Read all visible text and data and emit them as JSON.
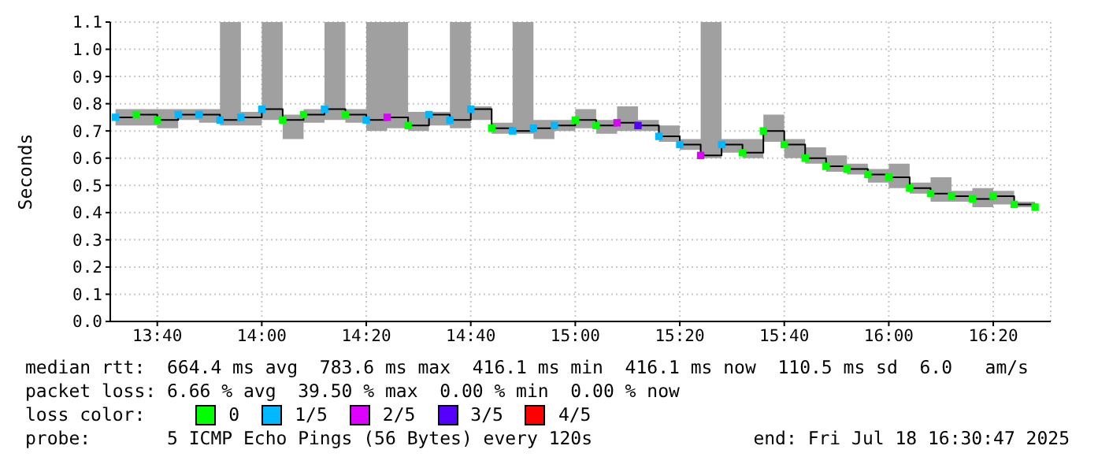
{
  "chart_data": {
    "type": "step",
    "ylabel": "Seconds",
    "legend_title": "loss color:",
    "legend": "bottom",
    "grid": true,
    "marker": "square",
    "x": [
      "2025-07-18T13:32",
      "2025-07-18T13:36",
      "2025-07-18T13:40",
      "2025-07-18T13:44",
      "2025-07-18T13:48",
      "2025-07-18T13:52",
      "2025-07-18T13:56",
      "2025-07-18T14:00",
      "2025-07-18T14:04",
      "2025-07-18T14:08",
      "2025-07-18T14:12",
      "2025-07-18T14:16",
      "2025-07-18T14:20",
      "2025-07-18T14:24",
      "2025-07-18T14:28",
      "2025-07-18T14:32",
      "2025-07-18T14:36",
      "2025-07-18T14:40",
      "2025-07-18T14:44",
      "2025-07-18T14:48",
      "2025-07-18T14:52",
      "2025-07-18T14:56",
      "2025-07-18T15:00",
      "2025-07-18T15:04",
      "2025-07-18T15:08",
      "2025-07-18T15:12",
      "2025-07-18T15:16",
      "2025-07-18T15:20",
      "2025-07-18T15:24",
      "2025-07-18T15:28",
      "2025-07-18T15:32",
      "2025-07-18T15:36",
      "2025-07-18T15:40",
      "2025-07-18T15:44",
      "2025-07-18T15:48",
      "2025-07-18T15:52",
      "2025-07-18T15:56",
      "2025-07-18T16:00",
      "2025-07-18T16:04",
      "2025-07-18T16:08",
      "2025-07-18T16:12",
      "2025-07-18T16:16",
      "2025-07-18T16:20",
      "2025-07-18T16:24",
      "2025-07-18T16:28"
    ],
    "series": [
      {
        "marker": "none",
        "color": "#000000",
        "values": [
          0.75,
          0.76,
          0.74,
          0.76,
          0.76,
          0.74,
          0.75,
          0.78,
          0.74,
          0.76,
          0.78,
          0.76,
          0.74,
          0.75,
          0.72,
          0.76,
          0.74,
          0.78,
          0.71,
          0.7,
          0.71,
          0.72,
          0.74,
          0.72,
          0.73,
          0.72,
          0.68,
          0.65,
          0.61,
          0.65,
          0.62,
          0.7,
          0.65,
          0.6,
          0.57,
          0.56,
          0.54,
          0.53,
          0.49,
          0.47,
          0.46,
          0.45,
          0.46,
          0.43,
          0.42
        ],
        "lower": [
          0.72,
          0.72,
          0.71,
          0.74,
          0.73,
          0.72,
          0.72,
          0.74,
          0.67,
          0.73,
          0.74,
          0.73,
          0.7,
          0.71,
          0.7,
          0.72,
          0.71,
          0.74,
          0.69,
          0.69,
          0.67,
          0.7,
          0.71,
          0.69,
          0.7,
          0.7,
          0.66,
          0.63,
          0.6,
          0.62,
          0.6,
          0.66,
          0.6,
          0.58,
          0.55,
          0.54,
          0.51,
          0.49,
          0.47,
          0.44,
          0.44,
          0.42,
          0.43,
          0.42,
          0.4
        ],
        "upper": [
          0.78,
          0.78,
          0.78,
          0.78,
          0.78,
          1.1,
          0.77,
          1.1,
          0.76,
          0.78,
          1.1,
          0.78,
          1.1,
          1.1,
          0.77,
          0.77,
          1.1,
          0.79,
          0.73,
          1.1,
          0.74,
          0.74,
          0.78,
          0.74,
          0.79,
          0.74,
          0.72,
          0.67,
          1.1,
          0.67,
          0.67,
          0.76,
          0.67,
          0.64,
          0.61,
          0.58,
          0.56,
          0.58,
          0.51,
          0.53,
          0.48,
          0.49,
          0.48,
          0.44,
          0.43
        ]
      },
      {
        "type": "scatter",
        "name": "0",
        "color": "#00ff00",
        "values": [
          null,
          0.76,
          0.74,
          null,
          null,
          null,
          null,
          null,
          0.74,
          0.76,
          null,
          0.76,
          null,
          null,
          0.72,
          null,
          null,
          null,
          0.71,
          null,
          null,
          null,
          0.74,
          0.72,
          null,
          null,
          null,
          null,
          null,
          null,
          0.62,
          0.7,
          0.65,
          0.6,
          0.57,
          0.56,
          0.54,
          0.53,
          0.49,
          0.47,
          0.46,
          0.45,
          0.46,
          0.43,
          0.42
        ]
      },
      {
        "type": "scatter",
        "name": "1/5",
        "color": "#00b8ff",
        "values": [
          0.75,
          null,
          null,
          0.76,
          0.76,
          0.74,
          0.75,
          0.78,
          null,
          null,
          0.78,
          null,
          0.74,
          null,
          null,
          0.76,
          0.74,
          0.78,
          null,
          0.7,
          0.71,
          0.72,
          null,
          null,
          null,
          null,
          0.68,
          0.65,
          null,
          0.65,
          null,
          null,
          null,
          null,
          null,
          null,
          null,
          null,
          null,
          null,
          null,
          null,
          null,
          null,
          null
        ]
      },
      {
        "type": "scatter",
        "name": "2/5",
        "color": "#dd00ff",
        "values": [
          null,
          null,
          null,
          null,
          null,
          null,
          null,
          null,
          null,
          null,
          null,
          null,
          null,
          0.75,
          null,
          null,
          null,
          null,
          null,
          null,
          null,
          null,
          null,
          null,
          0.73,
          null,
          null,
          null,
          0.61,
          null,
          null,
          null,
          null,
          null,
          null,
          null,
          null,
          null,
          null,
          null,
          null,
          null,
          null,
          null,
          null
        ]
      },
      {
        "type": "scatter",
        "name": "3/5",
        "color": "#5500ff",
        "values": [
          null,
          null,
          null,
          null,
          null,
          null,
          null,
          null,
          null,
          null,
          null,
          null,
          null,
          null,
          null,
          null,
          null,
          null,
          null,
          null,
          null,
          null,
          null,
          null,
          null,
          0.72,
          null,
          null,
          null,
          null,
          null,
          null,
          null,
          null,
          null,
          null,
          null,
          null,
          null,
          null,
          null,
          null,
          null,
          null,
          null
        ]
      },
      {
        "type": "scatter",
        "name": "4/5",
        "color": "#ff0000",
        "values": [
          null,
          null,
          null,
          null,
          null,
          null,
          null,
          null,
          null,
          null,
          null,
          null,
          null,
          null,
          null,
          null,
          null,
          null,
          null,
          null,
          null,
          null,
          null,
          null,
          null,
          null,
          null,
          null,
          null,
          null,
          null,
          null,
          null,
          null,
          null,
          null,
          null,
          null,
          null,
          null,
          null,
          null,
          null,
          null,
          null
        ]
      }
    ],
    "xlim": [
      "2025-07-18T13:31",
      "2025-07-18T16:31"
    ],
    "xticks": [
      {
        "value": "2025-07-18T13:40",
        "label": "13:40"
      },
      {
        "value": "2025-07-18T14:00",
        "label": "14:00"
      },
      {
        "value": "2025-07-18T14:20",
        "label": "14:20"
      },
      {
        "value": "2025-07-18T14:40",
        "label": "14:40"
      },
      {
        "value": "2025-07-18T15:00",
        "label": "15:00"
      },
      {
        "value": "2025-07-18T15:20",
        "label": "15:20"
      },
      {
        "value": "2025-07-18T15:40",
        "label": "15:40"
      },
      {
        "value": "2025-07-18T16:00",
        "label": "16:00"
      },
      {
        "value": "2025-07-18T16:20",
        "label": "16:20"
      }
    ],
    "ylim": [
      0,
      1.1
    ],
    "yticks": [
      {
        "value": 0,
        "label": "0.0"
      },
      0.1,
      0.2,
      0.3,
      0.4,
      0.5,
      0.6,
      0.7,
      0.8,
      0.9,
      {
        "value": 1,
        "label": "1.0"
      },
      1.1
    ],
    "annotations": [
      "median rtt:  664.4 ms avg  783.6 ms max  416.1 ms min  416.1 ms now  110.5 ms sd  6.0   am/s",
      "packet loss: 6.66 % avg  39.50 % max  0.00 % min  0.00 % now",
      "probe:       5 ICMP Echo Pings (56 Bytes) every 120s",
      "end: Fri Jul 18 16:30:47 2025"
    ]
  }
}
